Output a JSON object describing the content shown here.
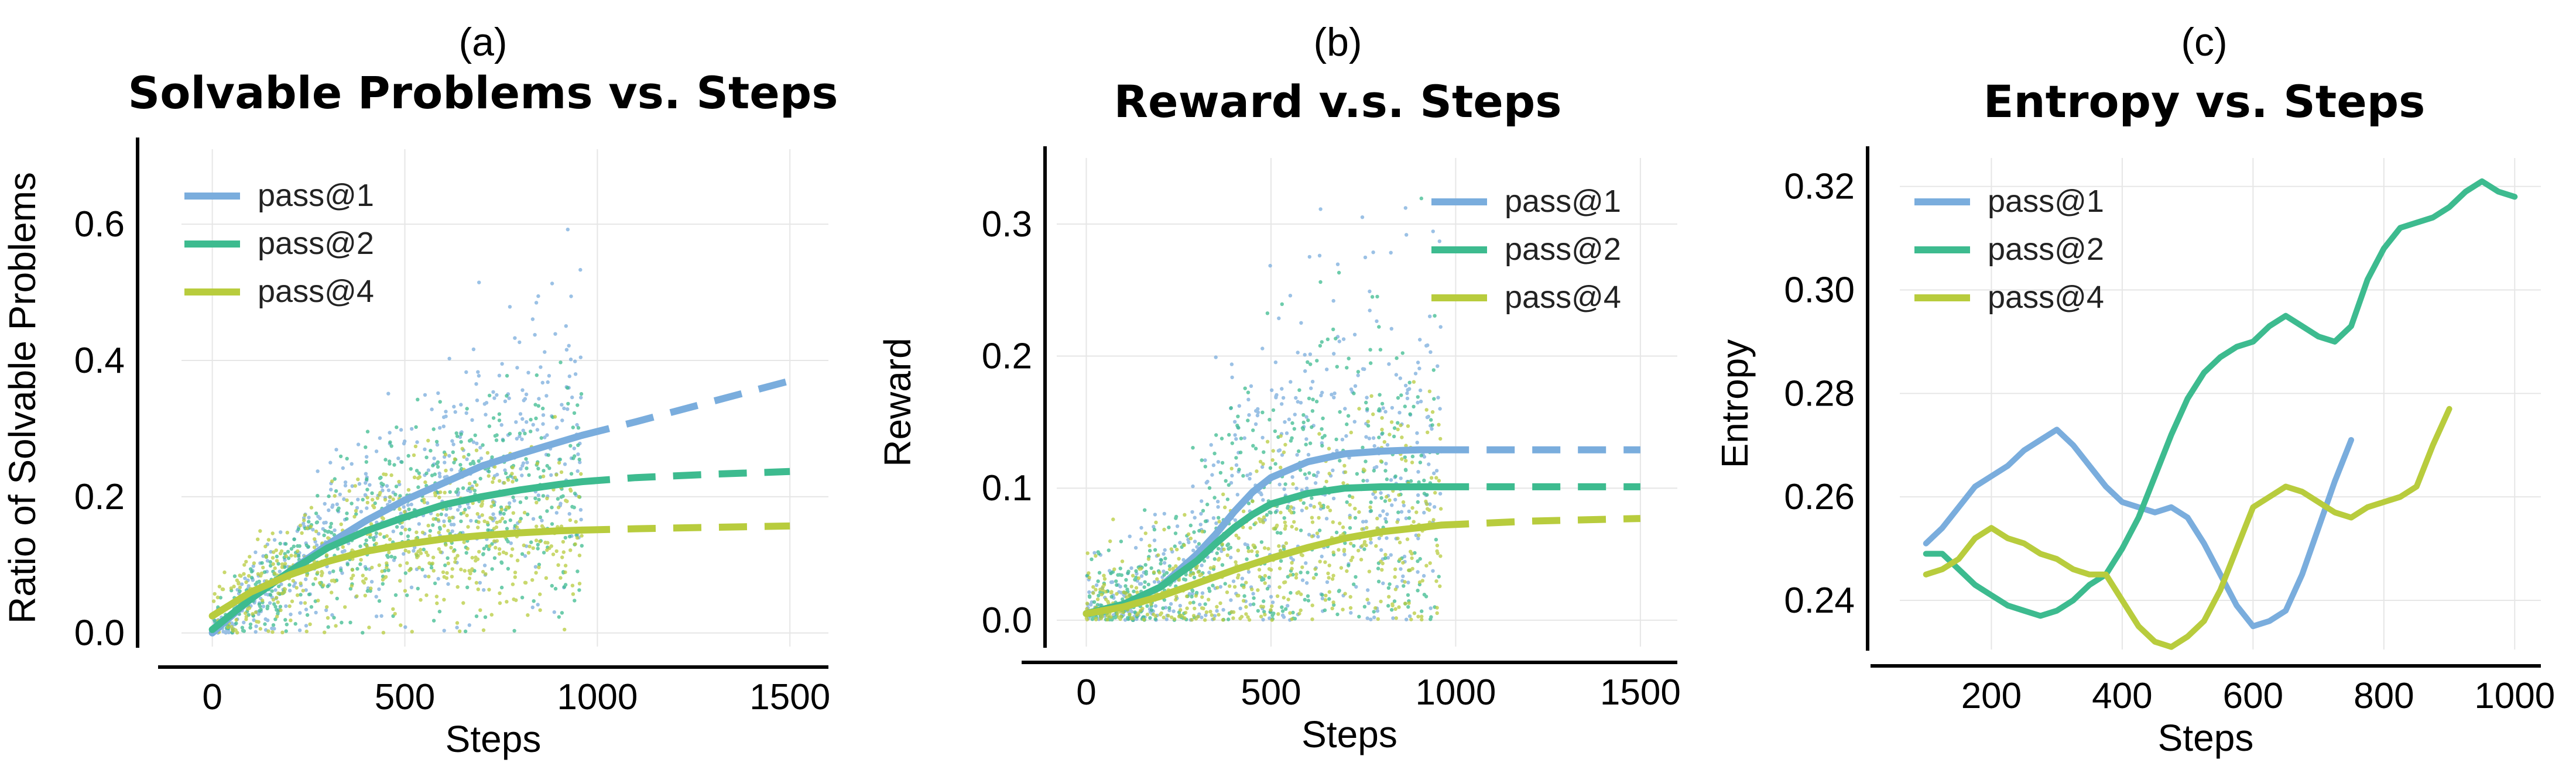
{
  "colors": {
    "pass1": "#7aaddd",
    "pass2": "#3dbb8f",
    "pass4": "#b8cc3d",
    "axis": "#000000",
    "grid": "#e6e6e6"
  },
  "chart_data": [
    {
      "type": "scatter",
      "panel_label": "(a)",
      "title": "Solvable Problems vs. Steps",
      "xlabel": "Steps",
      "ylabel": "Ratio of Solvable Problems",
      "xlim": [
        -80,
        1600
      ],
      "ylim": [
        -0.02,
        0.71
      ],
      "xticks": [
        0,
        500,
        1000,
        1500
      ],
      "xtick_labels": [
        "0",
        "500",
        "1000",
        "1500"
      ],
      "yticks": [
        0.0,
        0.2,
        0.4,
        0.6
      ],
      "ytick_labels": [
        "0.0",
        "0.2",
        "0.4",
        "0.6"
      ],
      "grid": true,
      "legend_position": "top-left",
      "scatter_x_range": [
        0,
        960
      ],
      "fit_solid_until": 960,
      "series": [
        {
          "name": "pass@1",
          "color_key": "pass1",
          "fit": {
            "x": [
              0,
              100,
              200,
              300,
              400,
              500,
              600,
              700,
              800,
              900,
              960,
              1100,
              1300,
              1500
            ],
            "y": [
              0.0,
              0.05,
              0.09,
              0.13,
              0.165,
              0.195,
              0.22,
              0.245,
              0.263,
              0.28,
              0.29,
              0.31,
              0.34,
              0.37
            ]
          }
        },
        {
          "name": "pass@2",
          "color_key": "pass2",
          "fit": {
            "x": [
              0,
              100,
              200,
              300,
              400,
              500,
              600,
              700,
              800,
              900,
              960,
              1100,
              1300,
              1500
            ],
            "y": [
              0.005,
              0.05,
              0.09,
              0.125,
              0.15,
              0.17,
              0.188,
              0.2,
              0.21,
              0.218,
              0.222,
              0.228,
              0.233,
              0.237
            ]
          }
        },
        {
          "name": "pass@4",
          "color_key": "pass4",
          "fit": {
            "x": [
              0,
              100,
              200,
              300,
              400,
              500,
              600,
              700,
              800,
              900,
              960,
              1100,
              1300,
              1500
            ],
            "y": [
              0.025,
              0.06,
              0.085,
              0.105,
              0.12,
              0.13,
              0.138,
              0.143,
              0.147,
              0.15,
              0.151,
              0.153,
              0.155,
              0.157
            ]
          }
        }
      ]
    },
    {
      "type": "scatter",
      "panel_label": "(b)",
      "title": "Reward v.s. Steps",
      "xlabel": "Steps",
      "ylabel": "Reward",
      "xlim": [
        -80,
        1600
      ],
      "ylim": [
        -0.02,
        0.35
      ],
      "xticks": [
        0,
        500,
        1000,
        1500
      ],
      "xtick_labels": [
        "0",
        "500",
        "1000",
        "1500"
      ],
      "yticks": [
        0.0,
        0.1,
        0.2,
        0.3
      ],
      "ytick_labels": [
        "0.0",
        "0.1",
        "0.2",
        "0.3"
      ],
      "grid": true,
      "legend_position": "top-right",
      "scatter_x_range": [
        0,
        960
      ],
      "fit_solid_until": 960,
      "series": [
        {
          "name": "pass@1",
          "color_key": "pass1",
          "fit": {
            "x": [
              0,
              100,
              200,
              300,
              350,
              400,
              450,
              500,
              600,
              700,
              800,
              900,
              960,
              1200,
              1500
            ],
            "y": [
              0.005,
              0.012,
              0.025,
              0.05,
              0.065,
              0.082,
              0.097,
              0.108,
              0.12,
              0.126,
              0.128,
              0.129,
              0.129,
              0.129,
              0.129
            ]
          }
        },
        {
          "name": "pass@2",
          "color_key": "pass2",
          "fit": {
            "x": [
              0,
              100,
              200,
              300,
              350,
              400,
              450,
              500,
              600,
              700,
              800,
              900,
              960,
              1200,
              1500
            ],
            "y": [
              0.005,
              0.012,
              0.025,
              0.045,
              0.058,
              0.07,
              0.08,
              0.088,
              0.096,
              0.1,
              0.101,
              0.101,
              0.101,
              0.101,
              0.101
            ]
          }
        },
        {
          "name": "pass@4",
          "color_key": "pass4",
          "fit": {
            "x": [
              0,
              100,
              200,
              300,
              400,
              500,
              600,
              700,
              800,
              900,
              960,
              1200,
              1500
            ],
            "y": [
              0.005,
              0.01,
              0.018,
              0.028,
              0.038,
              0.047,
              0.055,
              0.062,
              0.067,
              0.07,
              0.072,
              0.075,
              0.077
            ]
          }
        }
      ]
    },
    {
      "type": "line",
      "panel_label": "(c)",
      "title": "Entropy vs. Steps",
      "xlabel": "Steps",
      "ylabel": "Entropy",
      "xlim": [
        60,
        1040
      ],
      "ylim": [
        0.2305,
        0.3255
      ],
      "xticks": [
        200,
        400,
        600,
        800,
        1000
      ],
      "xtick_labels": [
        "200",
        "400",
        "600",
        "800",
        "1000"
      ],
      "yticks": [
        0.24,
        0.26,
        0.28,
        0.3,
        0.32
      ],
      "ytick_labels": [
        "0.24",
        "0.26",
        "0.28",
        "0.30",
        "0.32"
      ],
      "grid": true,
      "legend_position": "top-left",
      "series": [
        {
          "name": "pass@1",
          "color_key": "pass1",
          "x": [
            100,
            125,
            150,
            175,
            200,
            225,
            250,
            275,
            300,
            325,
            350,
            375,
            400,
            425,
            450,
            475,
            500,
            525,
            550,
            575,
            600,
            625,
            650,
            675,
            700,
            725,
            750
          ],
          "y": [
            0.251,
            0.254,
            0.258,
            0.262,
            0.264,
            0.266,
            0.269,
            0.271,
            0.273,
            0.27,
            0.266,
            0.262,
            0.259,
            0.258,
            0.257,
            0.258,
            0.256,
            0.251,
            0.245,
            0.239,
            0.235,
            0.236,
            0.238,
            0.245,
            0.254,
            0.263,
            0.271
          ]
        },
        {
          "name": "pass@2",
          "color_key": "pass2",
          "x": [
            100,
            125,
            150,
            175,
            200,
            225,
            250,
            275,
            300,
            325,
            350,
            375,
            400,
            425,
            450,
            475,
            500,
            525,
            550,
            575,
            600,
            625,
            650,
            675,
            700,
            725,
            750,
            775,
            800,
            825,
            850,
            875,
            900,
            925,
            950,
            975,
            1000
          ],
          "y": [
            0.249,
            0.249,
            0.246,
            0.243,
            0.241,
            0.239,
            0.238,
            0.237,
            0.238,
            0.24,
            0.243,
            0.245,
            0.25,
            0.256,
            0.264,
            0.272,
            0.279,
            0.284,
            0.287,
            0.289,
            0.29,
            0.293,
            0.295,
            0.293,
            0.291,
            0.29,
            0.293,
            0.302,
            0.308,
            0.312,
            0.313,
            0.314,
            0.316,
            0.319,
            0.321,
            0.319,
            0.318
          ]
        },
        {
          "name": "pass@4",
          "color_key": "pass4",
          "x": [
            100,
            125,
            150,
            175,
            200,
            225,
            250,
            275,
            300,
            325,
            350,
            375,
            400,
            425,
            450,
            475,
            500,
            525,
            550,
            575,
            600,
            625,
            650,
            675,
            700,
            725,
            750,
            775,
            800,
            825,
            850,
            875,
            900
          ],
          "y": [
            0.245,
            0.246,
            0.248,
            0.252,
            0.254,
            0.252,
            0.251,
            0.249,
            0.248,
            0.246,
            0.245,
            0.245,
            0.24,
            0.235,
            0.232,
            0.231,
            0.233,
            0.236,
            0.242,
            0.25,
            0.258,
            0.26,
            0.262,
            0.261,
            0.259,
            0.257,
            0.256,
            0.258,
            0.259,
            0.26,
            0.262,
            0.27,
            0.277
          ]
        }
      ]
    }
  ]
}
